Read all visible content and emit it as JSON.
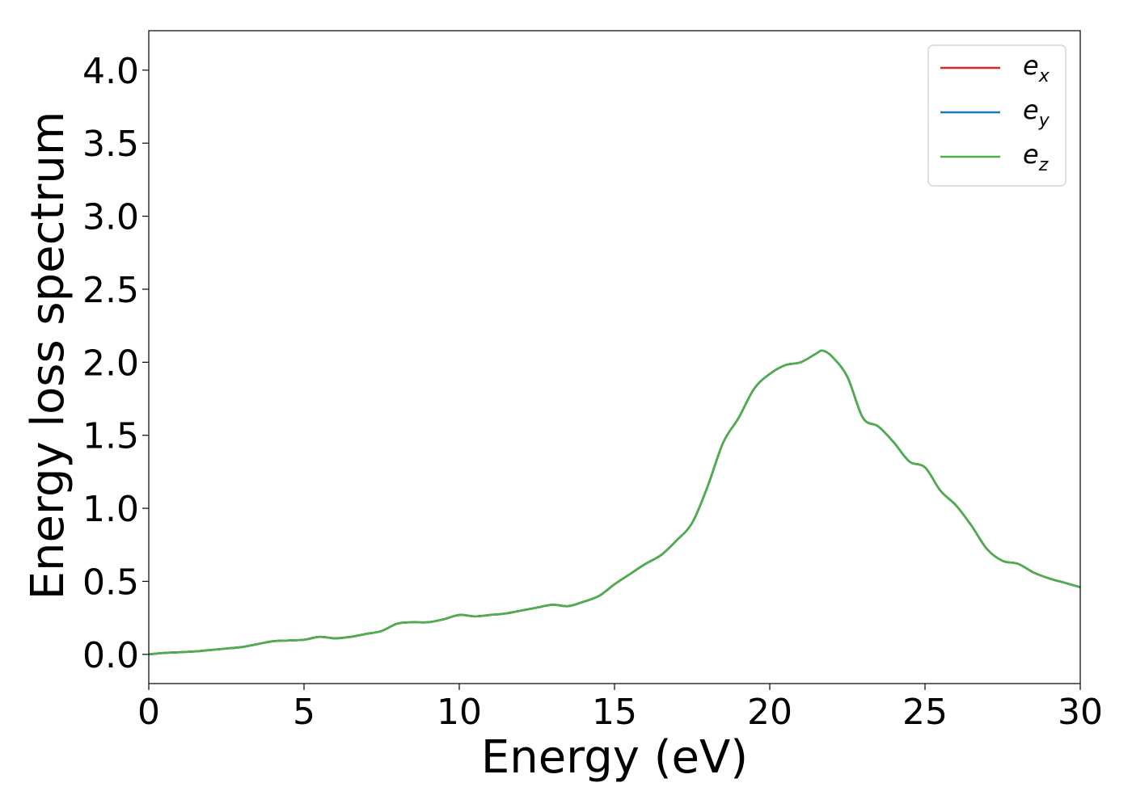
{
  "chart_data": {
    "type": "line",
    "xlabel": "Energy (eV)",
    "ylabel": "Energy loss spectrum",
    "xlim": [
      0,
      30
    ],
    "ylim": [
      -0.2,
      4.27
    ],
    "xticks": [
      0,
      5,
      10,
      15,
      20,
      25,
      30
    ],
    "xtick_labels": [
      "0",
      "5",
      "10",
      "15",
      "20",
      "25",
      "30"
    ],
    "yticks": [
      0.0,
      0.5,
      1.0,
      1.5,
      2.0,
      2.5,
      3.0,
      3.5,
      4.0
    ],
    "ytick_labels": [
      "0.0",
      "0.5",
      "1.0",
      "1.5",
      "2.0",
      "2.5",
      "3.0",
      "3.5",
      "4.0"
    ],
    "grid": false,
    "legend_position": "top-right",
    "x": [
      0,
      0.5,
      1,
      1.5,
      2,
      2.5,
      3,
      3.5,
      4,
      4.5,
      5,
      5.5,
      6,
      6.5,
      7,
      7.5,
      8,
      8.5,
      9,
      9.5,
      10,
      10.5,
      11,
      11.5,
      12,
      12.5,
      13,
      13.5,
      14,
      14.5,
      15,
      15.5,
      16,
      16.5,
      17,
      17.5,
      18,
      18.5,
      19,
      19.5,
      20,
      20.5,
      21,
      21.5,
      21.7,
      22,
      22.5,
      23,
      23.5,
      24,
      24.5,
      25,
      25.5,
      26,
      26.5,
      27,
      27.5,
      28,
      28.5,
      29,
      29.5,
      30
    ],
    "series": [
      {
        "name": "e",
        "subscript": "x",
        "color": "#d62728",
        "values": [
          0.0,
          0.01,
          0.015,
          0.02,
          0.03,
          0.04,
          0.05,
          0.07,
          0.09,
          0.095,
          0.1,
          0.12,
          0.11,
          0.12,
          0.14,
          0.16,
          0.21,
          0.22,
          0.22,
          0.24,
          0.27,
          0.26,
          0.27,
          0.28,
          0.3,
          0.32,
          0.34,
          0.33,
          0.36,
          0.4,
          0.48,
          0.55,
          0.62,
          0.68,
          0.78,
          0.9,
          1.15,
          1.45,
          1.62,
          1.82,
          1.92,
          1.98,
          2.0,
          2.06,
          2.08,
          2.04,
          1.9,
          1.62,
          1.56,
          1.45,
          1.32,
          1.28,
          1.12,
          1.02,
          0.88,
          0.72,
          0.64,
          0.62,
          0.56,
          0.52,
          0.49,
          0.46
        ]
      },
      {
        "name": "e",
        "subscript": "y",
        "color": "#1f77b4",
        "values": [
          0.0,
          0.01,
          0.015,
          0.02,
          0.03,
          0.04,
          0.05,
          0.07,
          0.09,
          0.095,
          0.1,
          0.12,
          0.11,
          0.12,
          0.14,
          0.16,
          0.21,
          0.22,
          0.22,
          0.24,
          0.27,
          0.26,
          0.27,
          0.28,
          0.3,
          0.32,
          0.34,
          0.33,
          0.36,
          0.4,
          0.48,
          0.55,
          0.62,
          0.68,
          0.78,
          0.9,
          1.15,
          1.45,
          1.62,
          1.82,
          1.92,
          1.98,
          2.0,
          2.06,
          2.08,
          2.04,
          1.9,
          1.62,
          1.56,
          1.45,
          1.32,
          1.28,
          1.12,
          1.02,
          0.88,
          0.72,
          0.64,
          0.62,
          0.56,
          0.52,
          0.49,
          0.46
        ]
      },
      {
        "name": "e",
        "subscript": "z",
        "color": "#4daf4a",
        "values": [
          0.0,
          0.01,
          0.015,
          0.02,
          0.03,
          0.04,
          0.05,
          0.07,
          0.09,
          0.095,
          0.1,
          0.12,
          0.11,
          0.12,
          0.14,
          0.16,
          0.21,
          0.22,
          0.22,
          0.24,
          0.27,
          0.26,
          0.27,
          0.28,
          0.3,
          0.32,
          0.34,
          0.33,
          0.36,
          0.4,
          0.48,
          0.55,
          0.62,
          0.68,
          0.78,
          0.9,
          1.15,
          1.45,
          1.62,
          1.82,
          1.92,
          1.98,
          2.0,
          2.06,
          2.08,
          2.04,
          1.9,
          1.62,
          1.56,
          1.45,
          1.32,
          1.28,
          1.12,
          1.02,
          0.88,
          0.72,
          0.64,
          0.62,
          0.56,
          0.52,
          0.49,
          0.46
        ]
      }
    ]
  }
}
